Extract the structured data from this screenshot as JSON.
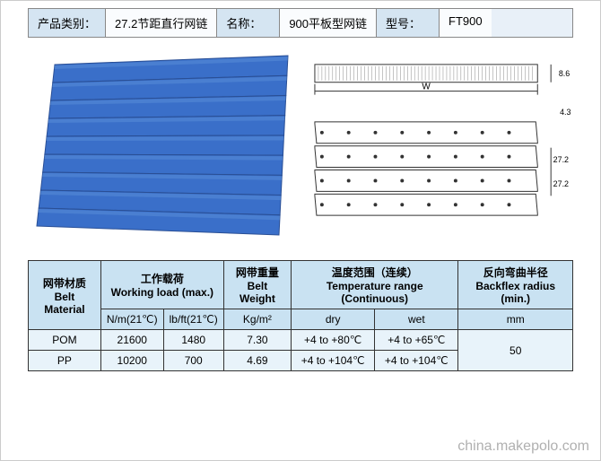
{
  "header": {
    "cat_label": "产品类别：",
    "cat_value": "27.2节距直行网链",
    "name_label": "名称：",
    "name_value": "900平板型网链",
    "model_label": "型号：",
    "model_value": "FT900"
  },
  "belt": {
    "photo_color": "#3a6fc9",
    "shadow": "#2a4f95",
    "highlight": "#5a8fd9",
    "rows": 9
  },
  "drawing": {
    "stroke": "#333333",
    "dim_w": "W",
    "dim_h1": "8.6",
    "dim_h2": "4.3",
    "dim_pitch1": "27.2",
    "dim_pitch2": "27.2"
  },
  "table": {
    "headers": {
      "material_cn": "网带材质",
      "material_en": "Belt Material",
      "load_cn": "工作载荷",
      "load_en": "Working load (max.)",
      "weight_cn": "网带重量",
      "weight_en": "Belt Weight",
      "temp_cn": "温度范围（连续）",
      "temp_en": "Temperature range (Continuous)",
      "backflex_cn": "反向弯曲半径",
      "backflex_en": "Backflex radius (min.)"
    },
    "sub": {
      "nm": "N/m(21℃)",
      "lbft": "lb/ft(21℃)",
      "kgm2": "Kg/m²",
      "dry": "dry",
      "wet": "wet",
      "mm": "mm"
    },
    "rows": [
      {
        "mat": "POM",
        "nm": "21600",
        "lbft": "1480",
        "kg": "7.30",
        "dry": "+4 to +80℃",
        "wet": "+4 to +65℃"
      },
      {
        "mat": "PP",
        "nm": "10200",
        "lbft": "700",
        "kg": "4.69",
        "dry": "+4 to +104℃",
        "wet": "+4 to +104℃"
      }
    ],
    "backflex": "50"
  },
  "watermark": "china.makepolo.com"
}
